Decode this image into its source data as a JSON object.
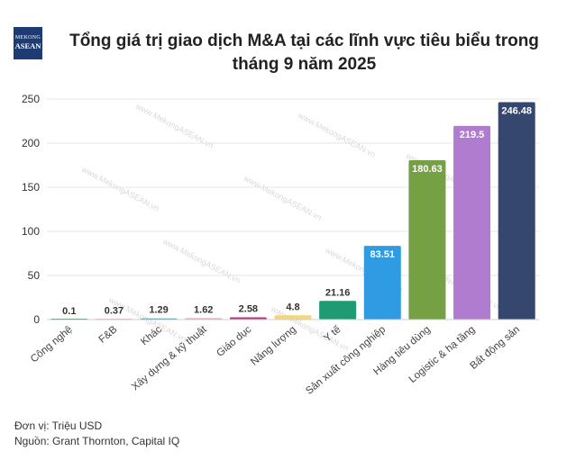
{
  "brand": {
    "line1": "MEKONG",
    "line2": "ASEAN"
  },
  "title_line1": "Tổng giá trị giao dịch M&A tại các lĩnh vực tiêu biểu trong",
  "title_line2": "tháng 9 năm 2025",
  "watermark_text": "www.MekongASEAN.vn",
  "footer": {
    "unit": "Đơn vị: Triệu USD",
    "source": "Nguồn: Grant Thornton, Capital IQ"
  },
  "chart_data": {
    "type": "bar",
    "title": "Tổng giá trị giao dịch M&A tại các lĩnh vực tiêu biểu trong tháng 9 năm 2025",
    "xlabel": "",
    "ylabel": "",
    "ylim": [
      0,
      250
    ],
    "yticks": [
      0,
      50,
      100,
      150,
      200,
      250
    ],
    "grid": true,
    "categories": [
      "Công nghệ",
      "F&B",
      "Khác",
      "Xây dựng & kỹ thuật",
      "Giáo dục",
      "Năng lượng",
      "Y tế",
      "Sản xuất công nghiệp",
      "Hàng tiêu dùng",
      "Logistic & hạ tầng",
      "Bất động sản"
    ],
    "values": [
      0.1,
      0.37,
      1.29,
      1.62,
      2.58,
      4.8,
      21.16,
      83.51,
      180.63,
      219.5,
      246.48
    ],
    "labels": [
      "0.1",
      "0.37",
      "1.29",
      "1.62",
      "2.58",
      "4.8",
      "21.16",
      "83.51",
      "180.63",
      "219.5",
      "246.48"
    ],
    "colors": [
      "#2d7d4a",
      "#f2a7c5",
      "#2f9aa5",
      "#f0a0c0",
      "#c0307a",
      "#f4d77a",
      "#1f9a72",
      "#2f9be3",
      "#76a044",
      "#b07ccf",
      "#36476f"
    ]
  }
}
